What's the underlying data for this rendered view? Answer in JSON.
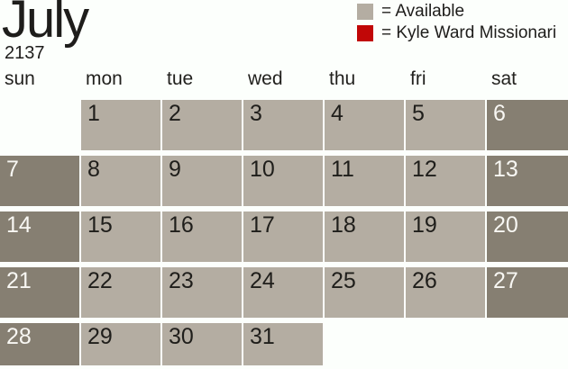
{
  "header": {
    "month": "July",
    "year": "2137"
  },
  "legend": {
    "items": [
      {
        "label": "= Available",
        "color": "#b4ada2",
        "name": "available-swatch"
      },
      {
        "label": "= Kyle Ward Missionari",
        "color": "#c10707",
        "name": "kyle-ward-missionaries-swatch"
      }
    ]
  },
  "colors": {
    "available": "#b4ada2",
    "weekend": "#867f72",
    "legend_red": "#c10707",
    "background": "#fcfffc"
  },
  "calendar": {
    "weekdays": [
      "sun",
      "mon",
      "tue",
      "wed",
      "thu",
      "fri",
      "sat"
    ],
    "weeks": [
      [
        {
          "day": "",
          "state": "empty"
        },
        {
          "day": "1",
          "state": "available"
        },
        {
          "day": "2",
          "state": "available"
        },
        {
          "day": "3",
          "state": "available"
        },
        {
          "day": "4",
          "state": "available"
        },
        {
          "day": "5",
          "state": "available"
        },
        {
          "day": "6",
          "state": "weekend"
        }
      ],
      [
        {
          "day": "7",
          "state": "weekend"
        },
        {
          "day": "8",
          "state": "available"
        },
        {
          "day": "9",
          "state": "available"
        },
        {
          "day": "10",
          "state": "available"
        },
        {
          "day": "11",
          "state": "available"
        },
        {
          "day": "12",
          "state": "available"
        },
        {
          "day": "13",
          "state": "weekend"
        }
      ],
      [
        {
          "day": "14",
          "state": "weekend"
        },
        {
          "day": "15",
          "state": "available"
        },
        {
          "day": "16",
          "state": "available"
        },
        {
          "day": "17",
          "state": "available"
        },
        {
          "day": "18",
          "state": "available"
        },
        {
          "day": "19",
          "state": "available"
        },
        {
          "day": "20",
          "state": "weekend"
        }
      ],
      [
        {
          "day": "21",
          "state": "weekend"
        },
        {
          "day": "22",
          "state": "available"
        },
        {
          "day": "23",
          "state": "available"
        },
        {
          "day": "24",
          "state": "available"
        },
        {
          "day": "25",
          "state": "available"
        },
        {
          "day": "26",
          "state": "available"
        },
        {
          "day": "27",
          "state": "weekend"
        }
      ],
      [
        {
          "day": "28",
          "state": "weekend"
        },
        {
          "day": "29",
          "state": "available"
        },
        {
          "day": "30",
          "state": "available"
        },
        {
          "day": "31",
          "state": "available"
        },
        {
          "day": "",
          "state": "empty"
        },
        {
          "day": "",
          "state": "empty"
        },
        {
          "day": "",
          "state": "empty"
        }
      ]
    ]
  }
}
